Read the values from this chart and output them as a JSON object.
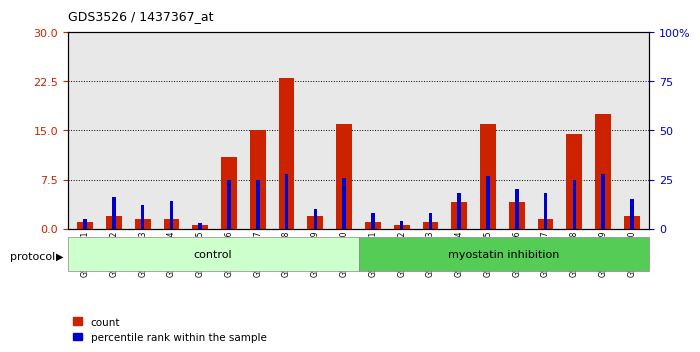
{
  "title": "GDS3526 / 1437367_at",
  "samples": [
    "GSM344631",
    "GSM344632",
    "GSM344633",
    "GSM344634",
    "GSM344635",
    "GSM344636",
    "GSM344637",
    "GSM344638",
    "GSM344639",
    "GSM344640",
    "GSM344641",
    "GSM344642",
    "GSM344643",
    "GSM344644",
    "GSM344645",
    "GSM344646",
    "GSM344647",
    "GSM344648",
    "GSM344649",
    "GSM344650"
  ],
  "count": [
    1.0,
    2.0,
    1.5,
    1.5,
    0.5,
    11.0,
    15.0,
    23.0,
    2.0,
    16.0,
    1.0,
    0.5,
    1.0,
    4.0,
    16.0,
    4.0,
    1.5,
    14.5,
    17.5,
    2.0
  ],
  "percentile": [
    5,
    16,
    12,
    14,
    3,
    25,
    25,
    28,
    10,
    26,
    8,
    4,
    8,
    18,
    27,
    20,
    18,
    25,
    28,
    15
  ],
  "control_count": 10,
  "myostatin_count": 10,
  "control_label": "control",
  "myostatin_label": "myostatin inhibition",
  "protocol_label": "protocol",
  "left_yticks": [
    0,
    7.5,
    15,
    22.5,
    30
  ],
  "right_yticks": [
    0,
    25,
    50,
    75,
    100
  ],
  "right_yticklabels": [
    "0",
    "25",
    "50",
    "75",
    "100%"
  ],
  "ylim_left": [
    0,
    30
  ],
  "ylim_right": [
    0,
    100
  ],
  "bar_color_red": "#CC2200",
  "bar_color_blue": "#0000CC",
  "control_bg": "#CCFFCC",
  "myostatin_bg": "#55CC55",
  "plot_bg": "#E8E8E8",
  "legend_count_label": "count",
  "legend_pct_label": "percentile rank within the sample"
}
